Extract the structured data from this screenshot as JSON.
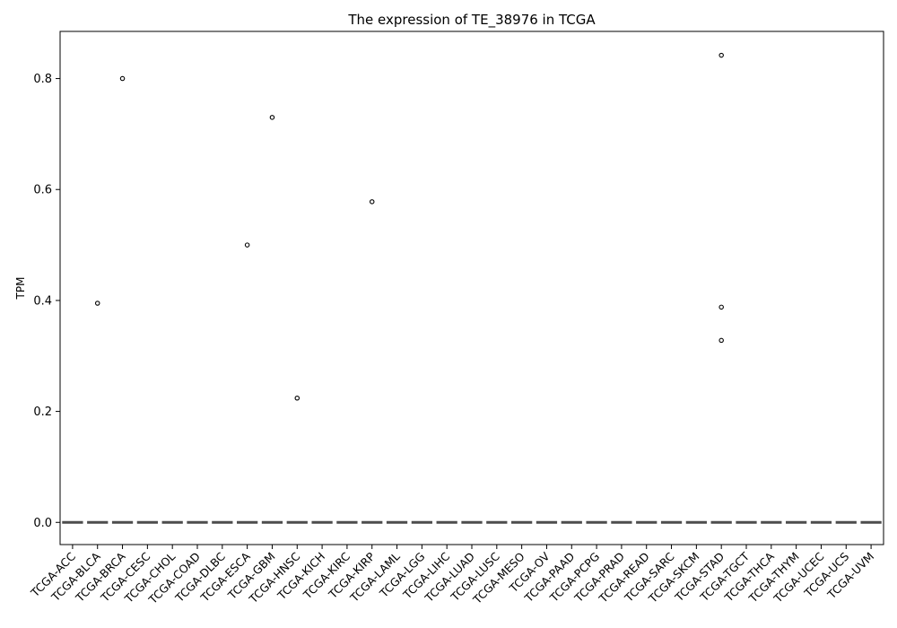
{
  "chart_data": {
    "type": "box",
    "title": "The expression of TE_38976 in TCGA",
    "xlabel": "",
    "ylabel": "TPM",
    "ylim": [
      -0.04,
      0.885
    ],
    "yticks": [
      0.0,
      0.2,
      0.4,
      0.6,
      0.8
    ],
    "ytick_labels": [
      "0.0",
      "0.2",
      "0.4",
      "0.6",
      "0.8"
    ],
    "grid": false,
    "categories": [
      "TCGA-ACC",
      "TCGA-BLCA",
      "TCGA-BRCA",
      "TCGA-CESC",
      "TCGA-CHOL",
      "TCGA-COAD",
      "TCGA-DLBC",
      "TCGA-ESCA",
      "TCGA-GBM",
      "TCGA-HNSC",
      "TCGA-KICH",
      "TCGA-KIRC",
      "TCGA-KIRP",
      "TCGA-LAML",
      "TCGA-LGG",
      "TCGA-LIHC",
      "TCGA-LUAD",
      "TCGA-LUSC",
      "TCGA-MESO",
      "TCGA-OV",
      "TCGA-PAAD",
      "TCGA-PCPG",
      "TCGA-PRAD",
      "TCGA-READ",
      "TCGA-SARC",
      "TCGA-SKCM",
      "TCGA-STAD",
      "TCGA-TGCT",
      "TCGA-THCA",
      "TCGA-THYM",
      "TCGA-UCEC",
      "TCGA-UCS",
      "TCGA-UVM"
    ],
    "box_summary": {
      "q1": 0.0,
      "median": 0.0,
      "q3": 0.0,
      "whisker_low": 0.0,
      "whisker_high": 0.0
    },
    "outliers": [
      {
        "category": "TCGA-BLCA",
        "value": 0.395
      },
      {
        "category": "TCGA-BRCA",
        "value": 0.8
      },
      {
        "category": "TCGA-ESCA",
        "value": 0.5
      },
      {
        "category": "TCGA-GBM",
        "value": 0.73
      },
      {
        "category": "TCGA-HNSC",
        "value": 0.224
      },
      {
        "category": "TCGA-KIRP",
        "value": 0.578
      },
      {
        "category": "TCGA-STAD",
        "value": 0.842
      },
      {
        "category": "TCGA-STAD",
        "value": 0.388
      },
      {
        "category": "TCGA-STAD",
        "value": 0.328
      }
    ],
    "colors": {
      "axis": "#000000",
      "box": "#4d4d4d",
      "outlier": "#000000"
    }
  }
}
